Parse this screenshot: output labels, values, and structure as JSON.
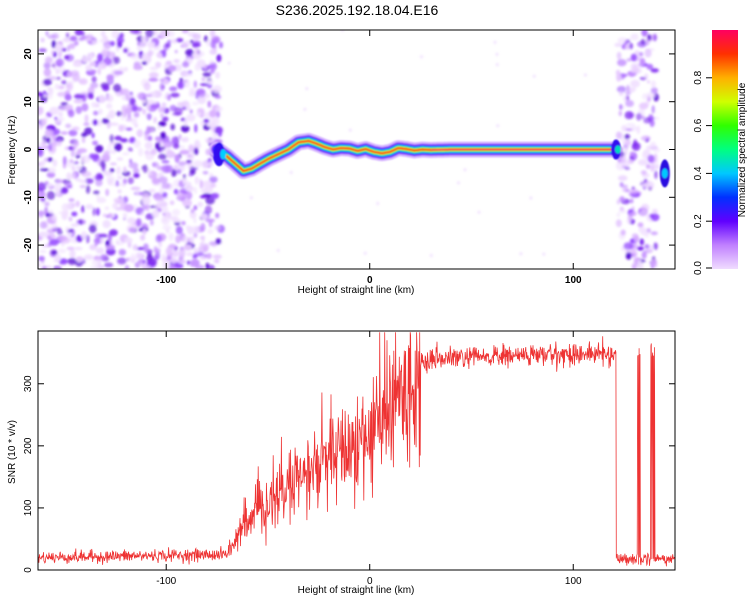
{
  "title": "S236.2025.192.18.04.E16",
  "chart_data": [
    {
      "type": "heatmap",
      "xlabel": "Height of straight line (km)",
      "ylabel": "Frequency (Hz)",
      "xlim": [
        -163,
        150
      ],
      "ylim": [
        -25,
        25
      ],
      "x_ticks": [
        -100,
        0,
        100
      ],
      "x_tick_labels": [
        "-100",
        "0",
        "100"
      ],
      "y_ticks": [
        -20,
        -10,
        0,
        10,
        20
      ],
      "y_tick_labels": [
        "-20",
        "-10",
        "0",
        "10",
        "20"
      ],
      "colorbar": {
        "label": "Normalized spectral amplitude",
        "range": [
          0,
          1
        ],
        "ticks": [
          0,
          0.2,
          0.4,
          0.6,
          0.8
        ],
        "tick_labels": [
          "0.0",
          "0.2",
          "0.4",
          "0.6",
          "0.8"
        ]
      },
      "noise_regions": [
        [
          -163,
          -73
        ],
        [
          122,
          141
        ]
      ],
      "ridge": {
        "x": [
          -75,
          -70,
          -66,
          -62,
          -58,
          -54,
          -50,
          -45,
          -40,
          -35,
          -30,
          -26,
          -22,
          -18,
          -14,
          -10,
          -6,
          -2,
          2,
          6,
          10,
          14,
          18,
          22,
          26,
          30,
          40,
          50,
          60,
          80,
          100,
          120
        ],
        "y": [
          0,
          -1.5,
          -3,
          -4.5,
          -4,
          -3,
          -2,
          -1,
          0,
          1.5,
          1.8,
          1.2,
          0.5,
          0,
          0.3,
          0.2,
          -0.3,
          0.1,
          -0.5,
          -0.8,
          -0.5,
          0.3,
          0.1,
          -0.2,
          0,
          -0.1,
          0,
          0,
          0,
          0,
          0,
          0
        ]
      },
      "right_blob": {
        "x": 145,
        "y": -5
      }
    },
    {
      "type": "line",
      "xlabel": "Height of straight line (km)",
      "ylabel": "SNR (10 * v/v)",
      "xlim": [
        -163,
        150
      ],
      "ylim": [
        0,
        385
      ],
      "x_ticks": [
        -100,
        0,
        100
      ],
      "x_tick_labels": [
        "-100",
        "0",
        "100"
      ],
      "y_ticks": [
        0,
        100,
        200,
        300
      ],
      "y_tick_labels": [
        "0",
        "100",
        "200",
        "300"
      ],
      "color": "#ee3333",
      "trend": {
        "x": [
          -163,
          -70,
          -65,
          -55,
          -45,
          -35,
          -25,
          -15,
          -5,
          5,
          15,
          25,
          35,
          50,
          70,
          100,
          121
        ],
        "y": [
          20,
          25,
          55,
          90,
          120,
          145,
          165,
          185,
          205,
          235,
          280,
          330,
          340,
          342,
          345,
          348,
          348
        ]
      },
      "dropouts": [
        [
          121,
          131
        ],
        [
          133,
          138
        ],
        [
          140,
          150
        ]
      ]
    }
  ]
}
